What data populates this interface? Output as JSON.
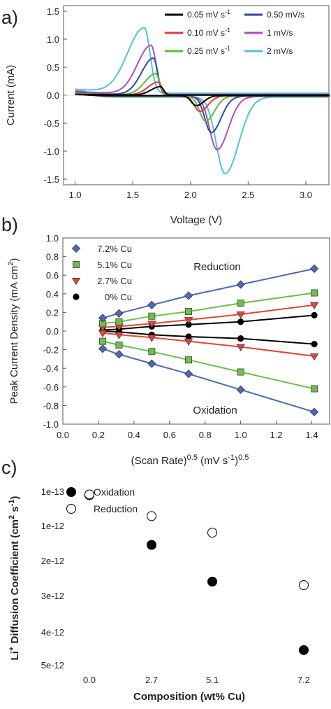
{
  "chart_data": [
    {
      "type": "line",
      "panel_label": "a)",
      "xlabel": "Voltage (V)",
      "ylabel": "Current (mA)",
      "xlim": [
        0.9,
        3.2
      ],
      "ylim": [
        -1.6,
        1.6
      ],
      "xticks": [
        "1.0",
        "1.5",
        "2.0",
        "2.5",
        "3.0"
      ],
      "yticks": [
        "1.5",
        "1.0",
        "0.5",
        "0.0",
        "-0.5",
        "-1.0",
        "-1.5"
      ],
      "grid": false,
      "legend_position": "top-right",
      "series": [
        {
          "name": "0.05 mV s-1",
          "name_base": "0.05 mV s",
          "name_sup": "-1",
          "color": "#000000",
          "ox_peak": [
            1.74,
            0.15
          ],
          "red_peak": [
            2.05,
            -0.18
          ],
          "width": 0.05,
          "env": 0.01,
          "baseline": 0.0
        },
        {
          "name": "0.10 mV s-1",
          "name_base": "0.10 mV s",
          "name_sup": "-1",
          "color": "#e03a3a",
          "ox_peak": [
            1.72,
            0.23
          ],
          "red_peak": [
            2.08,
            -0.28
          ],
          "width": 0.055,
          "env": 0.015,
          "baseline": 0.0
        },
        {
          "name": "0.25 mV s-1",
          "name_base": "0.25 mV s",
          "name_sup": "-1",
          "color": "#5aba3c",
          "ox_peak": [
            1.7,
            0.38
          ],
          "red_peak": [
            2.13,
            -0.45
          ],
          "width": 0.06,
          "env": 0.025,
          "baseline": 0.0
        },
        {
          "name": "0.50 mV/s",
          "color": "#2e4a9e",
          "ox_peak": [
            1.68,
            0.66
          ],
          "red_peak": [
            2.18,
            -0.65
          ],
          "width": 0.065,
          "env": 0.035,
          "baseline": 0.0
        },
        {
          "name": "1 mV/s",
          "color": "#b04cc0",
          "ox_peak": [
            1.66,
            0.88
          ],
          "red_peak": [
            2.23,
            -0.95
          ],
          "width": 0.075,
          "env": 0.05,
          "baseline": 0.01
        },
        {
          "name": "2 mV/s",
          "color": "#4cc6d6",
          "ox_peak": [
            1.6,
            1.17
          ],
          "red_peak": [
            2.3,
            -1.37
          ],
          "width": 0.09,
          "env": 0.07,
          "baseline": 0.03
        }
      ]
    },
    {
      "type": "scatter",
      "panel_label": "b)",
      "xlabel_base": "(Scan Rate)",
      "xlabel_sup": "0.5",
      "xlabel_mid": " (mV s",
      "xlabel_sup2": "-1",
      "xlabel_end": ")",
      "xlabel_sup3": "0.5",
      "ylabel_base": "Peak Current Density (mA cm",
      "ylabel_sup": "2",
      "ylabel_end": ")",
      "xlim": [
        0.0,
        1.5
      ],
      "ylim": [
        -1.0,
        1.0
      ],
      "xticks": [
        "0.0",
        "0.2",
        "0.4",
        "0.6",
        "0.8",
        "1.0",
        "1.2",
        "1.4"
      ],
      "yticks": [
        "1.0",
        "0.8",
        "0.6",
        "0.4",
        "0.2",
        "0.0",
        "-0.2",
        "-0.4",
        "-0.6",
        "-0.8",
        "-1.0"
      ],
      "grid": false,
      "legend_position": "top-left",
      "annotations": [
        "Reduction",
        "Oxidation"
      ],
      "x": [
        0.224,
        0.316,
        0.5,
        0.707,
        1.0,
        1.414
      ],
      "series": [
        {
          "name": "7.2% Cu",
          "marker": "diamond",
          "color": "#4d68b4",
          "reduction": [
            0.14,
            0.19,
            0.28,
            0.38,
            0.5,
            0.67
          ],
          "oxidation": [
            -0.19,
            -0.25,
            -0.35,
            -0.46,
            -0.63,
            -0.87
          ]
        },
        {
          "name": "5.1% Cu",
          "marker": "square",
          "color": "#6cc04a",
          "reduction": [
            0.08,
            0.1,
            0.16,
            0.21,
            0.3,
            0.41
          ],
          "oxidation": [
            -0.11,
            -0.15,
            -0.22,
            -0.31,
            -0.44,
            -0.62
          ]
        },
        {
          "name": "2.7% Cu",
          "marker": "triangle-down",
          "color": "#e0463a",
          "reduction": [
            0.04,
            0.05,
            0.08,
            0.12,
            0.18,
            0.28
          ],
          "oxidation": [
            -0.02,
            -0.04,
            -0.07,
            -0.11,
            -0.17,
            -0.27
          ]
        },
        {
          "name": "0% Cu",
          "marker": "circle",
          "color": "#000000",
          "reduction": [
            0.01,
            0.02,
            0.05,
            0.07,
            0.1,
            0.17
          ],
          "oxidation": [
            0.0,
            -0.01,
            -0.04,
            -0.06,
            -0.08,
            -0.14
          ]
        }
      ]
    },
    {
      "type": "scatter",
      "panel_label": "c)",
      "xlabel": "Composition (wt% Cu)",
      "ylabel_base": "Li",
      "ylabel_sup": "+",
      "ylabel_mid": " Diffusion Coefficient (cm",
      "ylabel_sup2": "2",
      "ylabel_mid2": " s",
      "ylabel_sup3": "-1",
      "ylabel_end": ")",
      "categories": [
        "0.0",
        "2.7",
        "5.1",
        "7.2"
      ],
      "ytick_labels": [
        "5e-12",
        "4e-12",
        "3e-12",
        "2e-12",
        "1e-12",
        "1e-13"
      ],
      "ytick_values": [
        5e-12,
        4e-12,
        3e-12,
        2e-12,
        1e-12,
        1e-13
      ],
      "ylim": [
        1e-13,
        5e-12
      ],
      "grid": false,
      "legend_position": "top-left",
      "series": [
        {
          "name": "Oxidation",
          "marker": "filled-circle",
          "values": [
            2e-13,
            1.55e-12,
            2.6e-12,
            4.55e-12
          ]
        },
        {
          "name": "Reduction",
          "marker": "open-circle",
          "values": [
            2e-13,
            7.5e-13,
            1.2e-12,
            2.7e-12
          ]
        }
      ]
    }
  ]
}
